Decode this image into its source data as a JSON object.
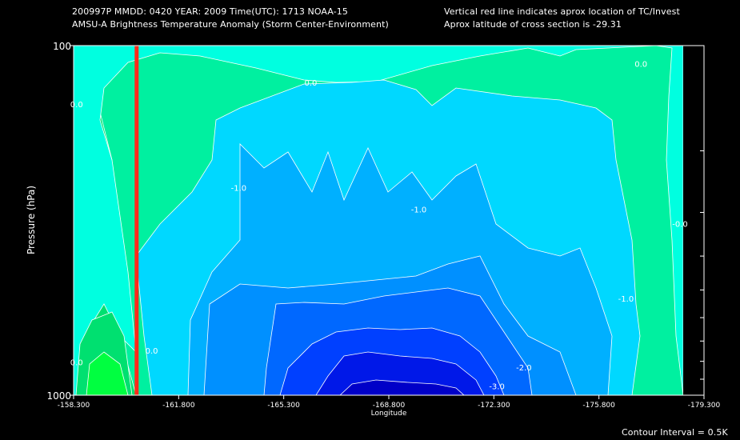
{
  "header": {
    "line1_left": "200997P  MMDD: 0420 YEAR: 2009 Time(UTC): 1713 NOAA-15",
    "line2_left": "AMSU-A Brightness Temperature Anomaly (Storm Center-Environment)",
    "line1_right": "Vertical red line indicates aprox location of TC/Invest",
    "line2_right": "Aprox latitude of cross section is -29.31"
  },
  "footer": {
    "contour_interval": "Contour Interval = 0.5K"
  },
  "colors": {
    "background": "#000000",
    "storm_line": "#ff2a1a",
    "contour_line": "#ffffff",
    "level_0": "#00e070",
    "level_0_light": "#00f0a0",
    "level_m05": "#00ffe0",
    "level_m1": "#00d8ff",
    "level_m15": "#00b0ff",
    "level_m2": "#0090ff",
    "level_m25": "#0068ff",
    "level_m3": "#0040ff",
    "level_m35": "#0018e8",
    "level_m4": "#0000c8"
  },
  "chart_data": {
    "type": "contour",
    "title": "AMSU-A Brightness Temperature Anomaly (Storm Center-Environment)",
    "xlabel": "Longitude",
    "ylabel": "Pressure (hPa)",
    "xlim": [
      -158.3,
      -179.3
    ],
    "ylim": [
      1000,
      100
    ],
    "y_scale": "log",
    "x_ticks": [
      "-158.300",
      "-161.800",
      "-165.300",
      "-168.800",
      "-172.300",
      "-175.800",
      "-179.300"
    ],
    "y_ticks": [
      "100",
      "1000"
    ],
    "contour_interval": 0.5,
    "storm_center_longitude": -160.4,
    "contour_labels": [
      {
        "text": "0.0",
        "lon": -158.4,
        "p": 150
      },
      {
        "text": "0.0",
        "lon": -166.2,
        "p": 130
      },
      {
        "text": "0.0",
        "lon": -177.2,
        "p": 115
      },
      {
        "text": "-1.0",
        "lon": -163.8,
        "p": 260
      },
      {
        "text": "-1.0",
        "lon": -169.8,
        "p": 300
      },
      {
        "text": "-0.0",
        "lon": -178.5,
        "p": 330
      },
      {
        "text": "-1.0",
        "lon": -176.7,
        "p": 540
      },
      {
        "text": "0.0",
        "lon": -158.4,
        "p": 820
      },
      {
        "text": "0.0",
        "lon": -160.9,
        "p": 760
      },
      {
        "text": "-2.0",
        "lon": -173.3,
        "p": 850
      },
      {
        "text": "-3.0",
        "lon": -172.4,
        "p": 960
      }
    ],
    "min_anomaly": -4.0
  }
}
